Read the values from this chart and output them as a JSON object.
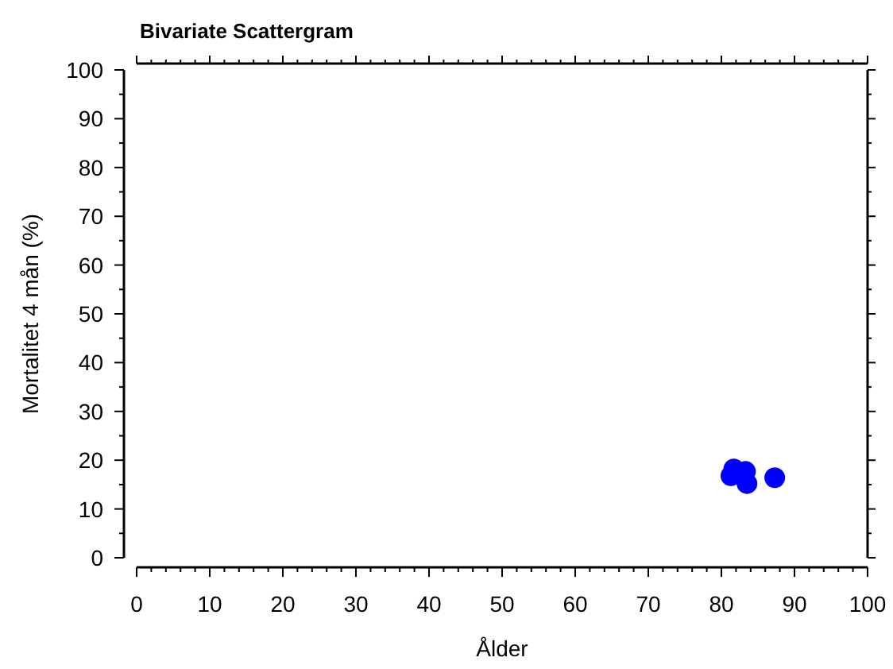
{
  "chart_data": {
    "type": "scatter",
    "title": "Bivariate Scattergram",
    "xlabel": "Ålder",
    "ylabel": "Mortalitet 4 mån (%)",
    "series": [
      {
        "color": "#0000ff",
        "x": [
          81.7,
          81.3,
          83.3,
          83.5,
          87.3
        ],
        "values": [
          18.2,
          16.8,
          17.7,
          15.2,
          16.4
        ]
      }
    ],
    "xlim": [
      0,
      100
    ],
    "xticks": [
      0,
      10,
      20,
      30,
      40,
      50,
      60,
      70,
      80,
      90,
      100
    ],
    "ylim": [
      0,
      100
    ],
    "yticks": [
      0,
      10,
      20,
      30,
      40,
      50,
      60,
      70,
      80,
      90,
      100
    ],
    "marker": "circle"
  }
}
